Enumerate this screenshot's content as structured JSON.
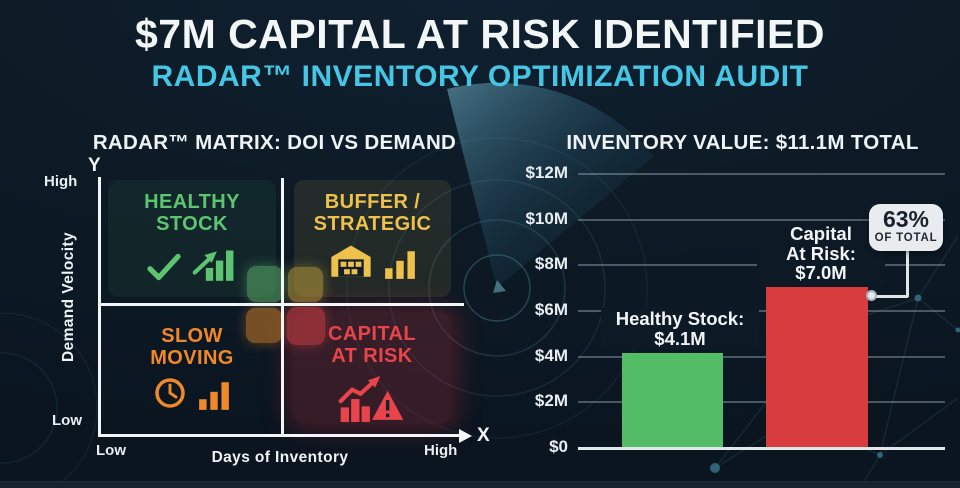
{
  "header": {
    "title": "$7M CAPITAL AT RISK IDENTIFIED",
    "subtitle": "RADAR™ INVENTORY OPTIMIZATION AUDIT"
  },
  "matrix": {
    "title": "RADAR™ MATRIX: DOI VS DEMAND",
    "y_axis": {
      "letter": "Y",
      "top_label": "High",
      "bottom_label": "Low",
      "title": "Demand Velocity"
    },
    "x_axis": {
      "letter": "X",
      "left_label": "Low",
      "right_label": "High",
      "title": "Days of Inventory"
    },
    "quadrants": {
      "healthy": {
        "line1": "HEALTHY",
        "line2": "STOCK",
        "color": "#5dc571",
        "icons": [
          "check-icon",
          "rising-bars-arrow-icon"
        ]
      },
      "buffer": {
        "line1": "BUFFER /",
        "line2": "STRATEGIC",
        "color": "#eec04c",
        "icons": [
          "warehouse-icon",
          "bars-icon"
        ]
      },
      "slow": {
        "line1": "SLOW",
        "line2": "MOVING",
        "color": "#f0882a",
        "icons": [
          "clock-icon",
          "bars-icon"
        ]
      },
      "risk": {
        "line1": "CAPITAL",
        "line2": "AT RISK",
        "color": "#e8444b",
        "icons": [
          "risk-trend-warning-icon"
        ]
      }
    }
  },
  "chart": {
    "title": "INVENTORY VALUE: $11.1M TOTAL",
    "bar_labels": {
      "healthy": [
        "Healthy Stock:",
        "$4.1M"
      ],
      "risk": [
        "Capital",
        "At Risk:",
        "$7.0M"
      ]
    },
    "badge": {
      "percent": "63%",
      "caption": "OF TOTAL"
    }
  },
  "chart_data": {
    "type": "bar",
    "title": "INVENTORY VALUE: $11.1M TOTAL",
    "categories": [
      "Healthy Stock",
      "Capital At Risk"
    ],
    "values": [
      4.1,
      7.0
    ],
    "unit": "USD millions",
    "total_label": "$11.1M",
    "ylim": [
      0,
      12
    ],
    "yticks": [
      {
        "label": "$12M",
        "value": 12
      },
      {
        "label": "$10M",
        "value": 10
      },
      {
        "label": "$8M",
        "value": 8
      },
      {
        "label": "$6M",
        "value": 6
      },
      {
        "label": "$4M",
        "value": 4
      },
      {
        "label": "$2M",
        "value": 2
      },
      {
        "label": "$0",
        "value": 0
      }
    ],
    "colors": [
      "#53bc66",
      "#d83c3c"
    ],
    "grid": true,
    "legend": false,
    "annotation": {
      "text": "63% OF TOTAL",
      "target": "Capital At Risk",
      "value_label": "$7.0M"
    }
  },
  "colors": {
    "background": "#0d1a25",
    "accent_cyan": "#45c6e5",
    "healthy_green": "#53bc66",
    "risk_red": "#d83c3c",
    "buffer_gold": "#eec04c",
    "slow_orange": "#f0882a"
  }
}
